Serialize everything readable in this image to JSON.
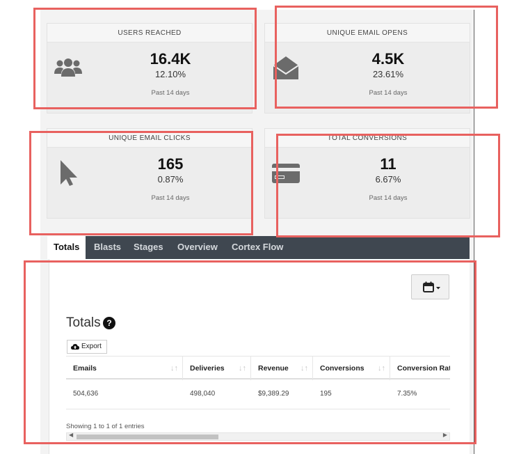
{
  "cards": [
    {
      "title": "USERS REACHED",
      "value": "16.4K",
      "percent": "12.10%",
      "period": "Past 14 days",
      "icon": "users-icon"
    },
    {
      "title": "UNIQUE EMAIL OPENS",
      "value": "4.5K",
      "percent": "23.61%",
      "period": "Past 14 days",
      "icon": "open-envelope-icon"
    },
    {
      "title": "UNIQUE EMAIL CLICKS",
      "value": "165",
      "percent": "0.87%",
      "period": "Past 14 days",
      "icon": "cursor-arrow-icon"
    },
    {
      "title": "TOTAL CONVERSIONS",
      "value": "11",
      "percent": "6.67%",
      "period": "Past 14 days",
      "icon": "credit-card-icon"
    }
  ],
  "tabs": [
    "Totals",
    "Blasts",
    "Stages",
    "Overview",
    "Cortex Flow"
  ],
  "panel": {
    "title": "Totals",
    "help_icon": "question-circle-icon",
    "calendar_icon": "calendar-icon",
    "export_label": "Export",
    "export_icon": "cloud-upload-icon",
    "table": {
      "headers": [
        "Emails",
        "Deliveries",
        "Revenue",
        "Conversions",
        "Conversion Rat"
      ],
      "rows": [
        [
          "504,636",
          "498,040",
          "$9,389.29",
          "195",
          "7.35%"
        ]
      ]
    },
    "showing_text": "Showing 1 to 1 of 1 entries"
  },
  "colors": {
    "highlight": "#e8615f",
    "tab_bar": "#3f4750",
    "icon": "#6b6b6b"
  }
}
